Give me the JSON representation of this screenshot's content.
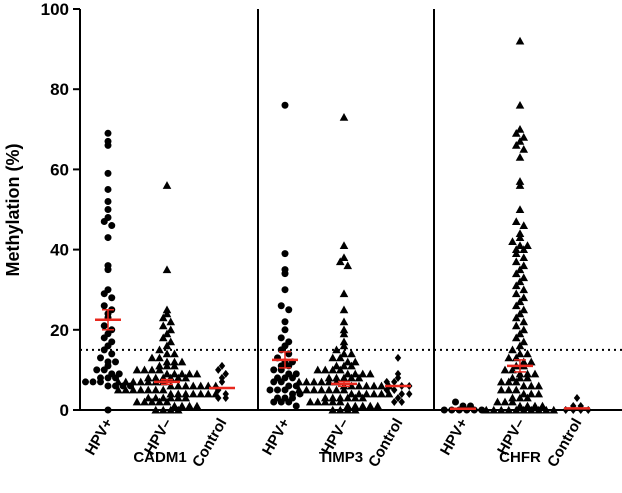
{
  "chart_data": {
    "type": "scatter",
    "ylabel": "Methylation (%)",
    "ylim": [
      0,
      100
    ],
    "yticks": [
      0,
      20,
      40,
      60,
      80,
      100
    ],
    "threshold": 15,
    "colors": {
      "points": "#000000",
      "mean": "#e8281e",
      "threshold": "#000000"
    },
    "groups": [
      {
        "gene": "CADM1",
        "categories": [
          {
            "label": "HPV+",
            "marker": "circle",
            "mean": 22.5,
            "sem": 2.5,
            "values": [
              69,
              67,
              66,
              59,
              55,
              52,
              50,
              48,
              47,
              46,
              43,
              36,
              35,
              30,
              29,
              28,
              26,
              25,
              24,
              23,
              21,
              20,
              19,
              18,
              17,
              16,
              15,
              14,
              13,
              12,
              12,
              11,
              10,
              10,
              9,
              9,
              8,
              8,
              8,
              7,
              7,
              7,
              6,
              6,
              6,
              6,
              0
            ]
          },
          {
            "label": "HPV–",
            "marker": "triangle",
            "mean": 7,
            "sem": 0.6,
            "values": [
              56,
              35,
              25,
              24,
              23,
              22,
              21,
              20,
              19,
              18,
              17,
              16,
              15,
              14,
              14,
              13,
              13,
              12,
              12,
              12,
              11,
              11,
              11,
              10,
              10,
              10,
              10,
              9,
              9,
              9,
              9,
              9,
              8,
              8,
              8,
              8,
              8,
              8,
              7,
              7,
              7,
              7,
              7,
              7,
              7,
              6,
              6,
              6,
              6,
              6,
              6,
              6,
              5,
              5,
              5,
              5,
              5,
              5,
              5,
              4,
              4,
              4,
              4,
              4,
              4,
              4,
              3,
              3,
              3,
              3,
              3,
              3,
              2,
              2,
              2,
              2,
              2,
              1,
              1,
              1,
              1,
              0,
              0,
              0,
              0
            ]
          },
          {
            "label": "Control",
            "marker": "diamond",
            "mean": 5.5,
            "sem": 0,
            "values": [
              11,
              10,
              9,
              8,
              7,
              5,
              4,
              3,
              3
            ]
          }
        ]
      },
      {
        "gene": "TIMP3",
        "categories": [
          {
            "label": "HPV+",
            "marker": "circle",
            "mean": 12.5,
            "sem": 2,
            "values": [
              76,
              39,
              35,
              34,
              30,
              26,
              25,
              22,
              20,
              18,
              17,
              16,
              15,
              14,
              13,
              12,
              12,
              11,
              11,
              10,
              10,
              9,
              9,
              8,
              8,
              8,
              7,
              7,
              6,
              6,
              5,
              5,
              5,
              4,
              4,
              3,
              3,
              3,
              2,
              2,
              2,
              1
            ]
          },
          {
            "label": "HPV–",
            "marker": "triangle",
            "mean": 6.5,
            "sem": 0.6,
            "values": [
              73,
              41,
              38,
              37,
              36,
              29,
              25,
              22,
              20,
              19,
              17,
              16,
              15,
              14,
              14,
              13,
              13,
              12,
              12,
              11,
              11,
              11,
              10,
              10,
              10,
              10,
              9,
              9,
              9,
              9,
              8,
              8,
              8,
              8,
              8,
              7,
              7,
              7,
              7,
              7,
              7,
              6,
              6,
              6,
              6,
              6,
              6,
              6,
              5,
              5,
              5,
              5,
              5,
              5,
              5,
              4,
              4,
              4,
              4,
              4,
              4,
              3,
              3,
              3,
              3,
              3,
              3,
              2,
              2,
              2,
              2,
              2,
              1,
              1,
              1,
              1,
              1,
              0,
              0,
              0,
              0
            ]
          },
          {
            "label": "Control",
            "marker": "diamond",
            "mean": 6,
            "sem": 0,
            "values": [
              13,
              9,
              8,
              7,
              7,
              6,
              6,
              5,
              5,
              4,
              4,
              3,
              2,
              2
            ]
          }
        ]
      },
      {
        "gene": "CHFR",
        "categories": [
          {
            "label": "HPV+",
            "marker": "circle",
            "mean": 0.3,
            "sem": 0,
            "values": [
              2,
              1,
              1,
              0,
              0,
              0,
              0,
              0,
              0
            ]
          },
          {
            "label": "HPV–",
            "marker": "triangle",
            "mean": 11,
            "sem": 1.5,
            "values": [
              92,
              76,
              70,
              69,
              68,
              67,
              66,
              65,
              63,
              57,
              56,
              50,
              47,
              46,
              44,
              43,
              42,
              41,
              41,
              40,
              40,
              39,
              38,
              37,
              36,
              35,
              34,
              33,
              32,
              31,
              30,
              29,
              28,
              27,
              26,
              25,
              24,
              23,
              22,
              21,
              20,
              19,
              18,
              17,
              16,
              15,
              14,
              14,
              13,
              13,
              12,
              12,
              11,
              11,
              10,
              10,
              9,
              9,
              9,
              8,
              8,
              8,
              7,
              7,
              7,
              6,
              6,
              6,
              5,
              5,
              5,
              4,
              4,
              4,
              3,
              3,
              3,
              2,
              2,
              2,
              1,
              1,
              1,
              1,
              0,
              0,
              0,
              0,
              0,
              0,
              0,
              0,
              0,
              0
            ]
          },
          {
            "label": "Control",
            "marker": "diamond",
            "mean": 0.4,
            "sem": 0,
            "values": [
              3,
              1,
              1,
              0,
              0,
              0,
              0
            ]
          }
        ]
      }
    ]
  }
}
